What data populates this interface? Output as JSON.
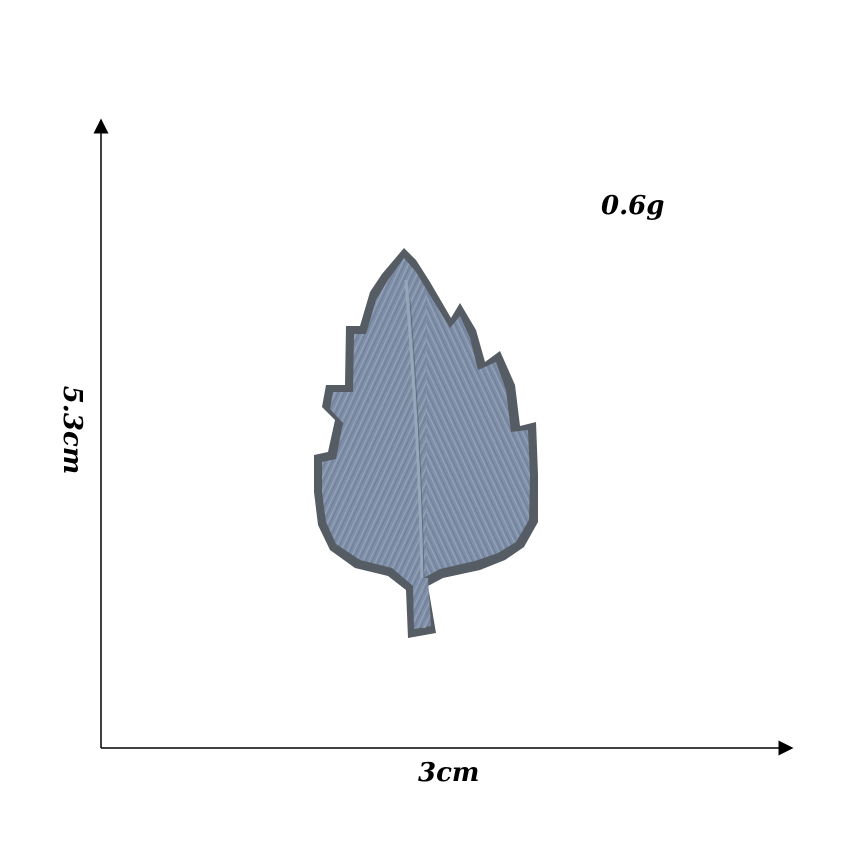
{
  "labels": {
    "weight": "0.6g",
    "width": "3cm",
    "height": "5.3cm"
  },
  "colors": {
    "background": "#ffffff",
    "axis": "#000000",
    "leaf_fill": "#7f8fa8",
    "leaf_border": "#565c63",
    "leaf_stitch": "#9aa8bd",
    "leaf_shadow": "#4e5865"
  },
  "product": {
    "name": "leaf-patch-icon"
  }
}
